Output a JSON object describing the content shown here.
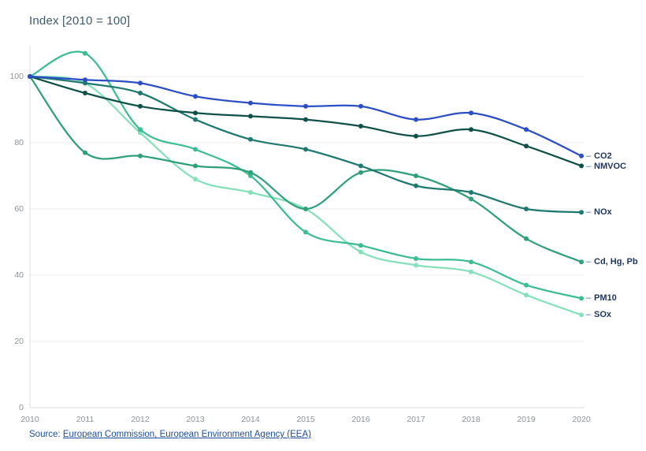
{
  "page": {
    "title": "Index [2010 = 100]"
  },
  "source": {
    "prefix": "Source:",
    "link_text": "European Commission, European Environment Agency (EEA)"
  },
  "colors": {
    "title_text": "#3d5a6d",
    "tick_text": "#8d9499",
    "series_label_text": "#1c355e",
    "gridline": "#eceeef",
    "axis_line": "#dcdfe1",
    "source_link": "#1f4e9c"
  },
  "chart_data": {
    "type": "line",
    "title": "Index [2010 = 100]",
    "xlabel": "",
    "ylabel": "Index [2010 = 100]",
    "x": [
      "2010",
      "2011",
      "2012",
      "2013",
      "2014",
      "2015",
      "2016",
      "2017",
      "2018",
      "2019",
      "2020"
    ],
    "y_ticks": [
      0,
      20,
      40,
      60,
      80,
      100
    ],
    "ylim": [
      0,
      110
    ],
    "grid": true,
    "legend_position": "right-end-labels",
    "marker": "circle",
    "smooth": true,
    "series": [
      {
        "id": "sox",
        "name": "SOx",
        "color": "#85e1ba",
        "values": [
          100,
          98,
          83,
          69,
          65,
          60,
          47,
          43,
          41,
          34,
          28
        ]
      },
      {
        "id": "pm10",
        "name": "PM10",
        "color": "#3cbd90",
        "values": [
          100,
          107,
          84,
          78,
          70,
          53,
          49,
          45,
          44,
          37,
          33
        ]
      },
      {
        "id": "cd-hg-pb",
        "name": "Cd, Hg, Pb",
        "color": "#2fa078",
        "values": [
          100,
          77,
          76,
          73,
          71,
          60,
          71,
          70,
          63,
          51,
          44
        ]
      },
      {
        "id": "nox",
        "name": "NOx",
        "color": "#1e7a70",
        "values": [
          100,
          98,
          95,
          87,
          81,
          78,
          73,
          67,
          65,
          60,
          59
        ]
      },
      {
        "id": "nmvoc",
        "name": "NMVOC",
        "color": "#0f5049",
        "values": [
          100,
          95,
          91,
          89,
          88,
          87,
          85,
          82,
          84,
          79,
          73
        ]
      },
      {
        "id": "co2",
        "name": "CO2",
        "color": "#2b4ec6",
        "values": [
          100,
          99,
          98,
          94,
          92,
          91,
          91,
          87,
          89,
          84,
          76
        ]
      }
    ]
  }
}
